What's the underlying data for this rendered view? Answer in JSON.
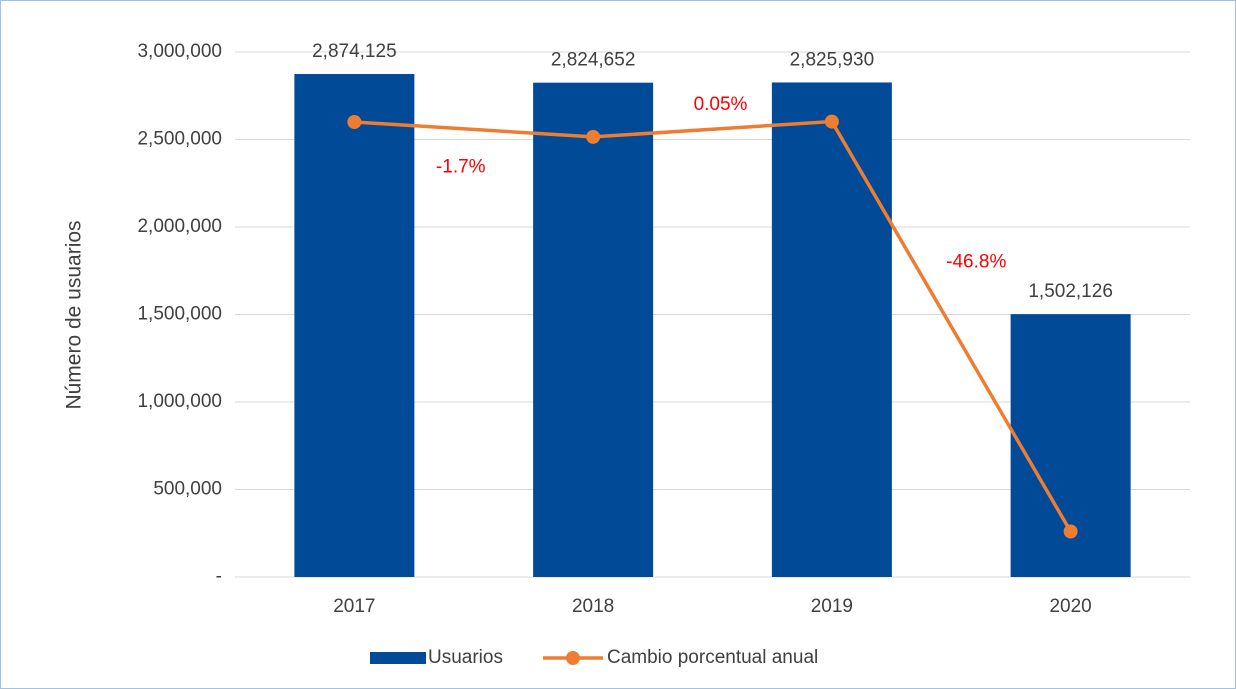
{
  "chart_data": {
    "type": "bar-line",
    "ylabel": "Número de usuarios",
    "categories": [
      "2017",
      "2018",
      "2019",
      "2020"
    ],
    "series": [
      {
        "name": "Usuarios",
        "type": "bar",
        "color": "#004a98",
        "values": [
          2874125,
          2824652,
          2825930,
          1502126
        ],
        "value_labels": [
          "2,874,125",
          "2,824,652",
          "2,825,930",
          "1,502,126"
        ]
      },
      {
        "name": "Cambio porcentual anual",
        "type": "line",
        "axis": "y2",
        "color": "#ed7d31",
        "label_color": "#ff0000",
        "values": [
          0,
          -1.7,
          0.05,
          -46.8
        ],
        "value_labels": [
          null,
          "-1.7%",
          "0.05%",
          "-46.8%"
        ]
      }
    ],
    "ylim": [
      0,
      3000000
    ],
    "yticks": [
      {
        "value": 0,
        "label": "-"
      },
      {
        "value": 500000,
        "label": "500,000"
      },
      {
        "value": 1000000,
        "label": "1,000,000"
      },
      {
        "value": 1500000,
        "label": "1,500,000"
      },
      {
        "value": 2000000,
        "label": "2,000,000"
      },
      {
        "value": 2500000,
        "label": "2,500,000"
      },
      {
        "value": 3000000,
        "label": "3,000,000"
      }
    ],
    "y2lim": [
      -52,
      8
    ],
    "grid": true,
    "legend": "bottom"
  }
}
